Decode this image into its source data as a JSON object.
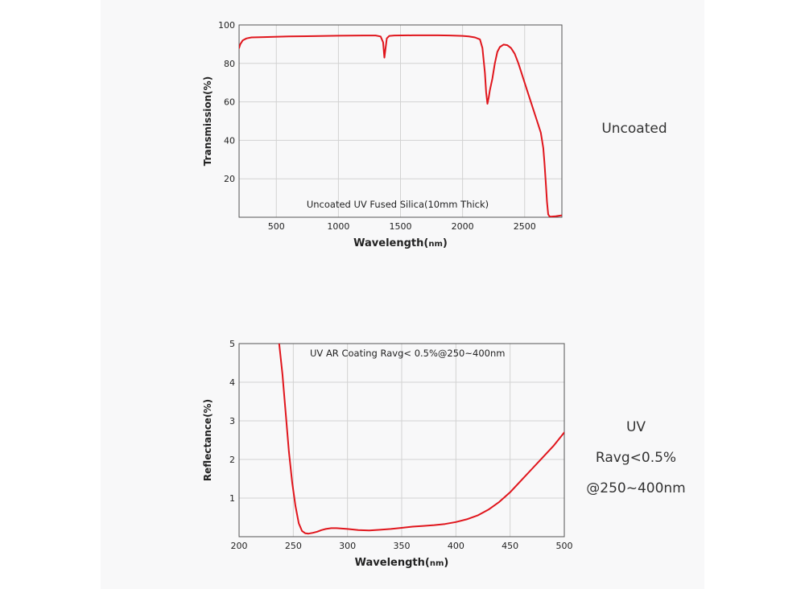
{
  "colors": {
    "curve": "#e0151c",
    "grid": "#d2d2d2",
    "frame": "#555555",
    "text": "#222222"
  },
  "side_labels": {
    "chart1": [
      "Uncoated"
    ],
    "chart2": [
      "UV",
      "Ravg<0.5%",
      "@250~400nm"
    ]
  },
  "chart_data": [
    {
      "type": "line",
      "title": "Uncoated UV Fused Silica(10mm Thick)",
      "xlabel": "Wavelength(nm)",
      "ylabel": "Transmission(%)",
      "xlim": [
        200,
        2800
      ],
      "ylim": [
        0,
        100
      ],
      "xticks": [
        500,
        1000,
        1500,
        2000,
        2500
      ],
      "yticks": [
        20,
        40,
        60,
        80,
        100
      ],
      "grid": true,
      "series": [
        {
          "name": "Uncoated UV Fused Silica",
          "x": [
            200,
            210,
            230,
            260,
            300,
            400,
            600,
            800,
            900,
            1000,
            1200,
            1300,
            1340,
            1360,
            1370,
            1380,
            1390,
            1410,
            1450,
            1600,
            1800,
            1900,
            2000,
            2050,
            2100,
            2140,
            2160,
            2180,
            2190,
            2200,
            2210,
            2220,
            2240,
            2260,
            2280,
            2300,
            2330,
            2360,
            2390,
            2420,
            2450,
            2480,
            2520,
            2560,
            2600,
            2630,
            2650,
            2660,
            2670,
            2680,
            2690,
            2700,
            2710,
            2750,
            2800
          ],
          "y": [
            88,
            90,
            92,
            93,
            93.5,
            93.7,
            94,
            94.2,
            94.3,
            94.4,
            94.5,
            94.5,
            94,
            91,
            83,
            88,
            93,
            94.3,
            94.5,
            94.6,
            94.6,
            94.5,
            94.3,
            94,
            93.5,
            92.5,
            88,
            75,
            65,
            59,
            62,
            66,
            72,
            80,
            86,
            88.5,
            89.8,
            89.5,
            88,
            85,
            80,
            74,
            66,
            58,
            50,
            44,
            36,
            28,
            18,
            8,
            1.5,
            0.5,
            0.3,
            0.5,
            1
          ]
        }
      ]
    },
    {
      "type": "line",
      "title": "UV AR Coating Ravg< 0.5%@250~400nm",
      "xlabel": "Wavelength(nm)",
      "ylabel": "Reflectance(%)",
      "xlim": [
        200,
        500
      ],
      "ylim": [
        0,
        5
      ],
      "xticks": [
        200,
        250,
        300,
        350,
        400,
        450,
        500
      ],
      "yticks": [
        1,
        2,
        3,
        4,
        5
      ],
      "grid": true,
      "series": [
        {
          "name": "UV AR Coating",
          "x": [
            237,
            240,
            243,
            246,
            249,
            252,
            255,
            258,
            261,
            264,
            268,
            272,
            276,
            280,
            285,
            290,
            295,
            300,
            310,
            320,
            330,
            340,
            350,
            360,
            370,
            380,
            390,
            400,
            410,
            420,
            430,
            440,
            450,
            460,
            470,
            480,
            490,
            500
          ],
          "y": [
            5.0,
            4.2,
            3.2,
            2.2,
            1.4,
            0.8,
            0.35,
            0.15,
            0.09,
            0.08,
            0.1,
            0.13,
            0.17,
            0.2,
            0.22,
            0.22,
            0.21,
            0.2,
            0.17,
            0.16,
            0.18,
            0.2,
            0.23,
            0.26,
            0.28,
            0.3,
            0.33,
            0.38,
            0.45,
            0.55,
            0.7,
            0.9,
            1.15,
            1.45,
            1.75,
            2.05,
            2.35,
            2.7
          ]
        }
      ]
    }
  ]
}
